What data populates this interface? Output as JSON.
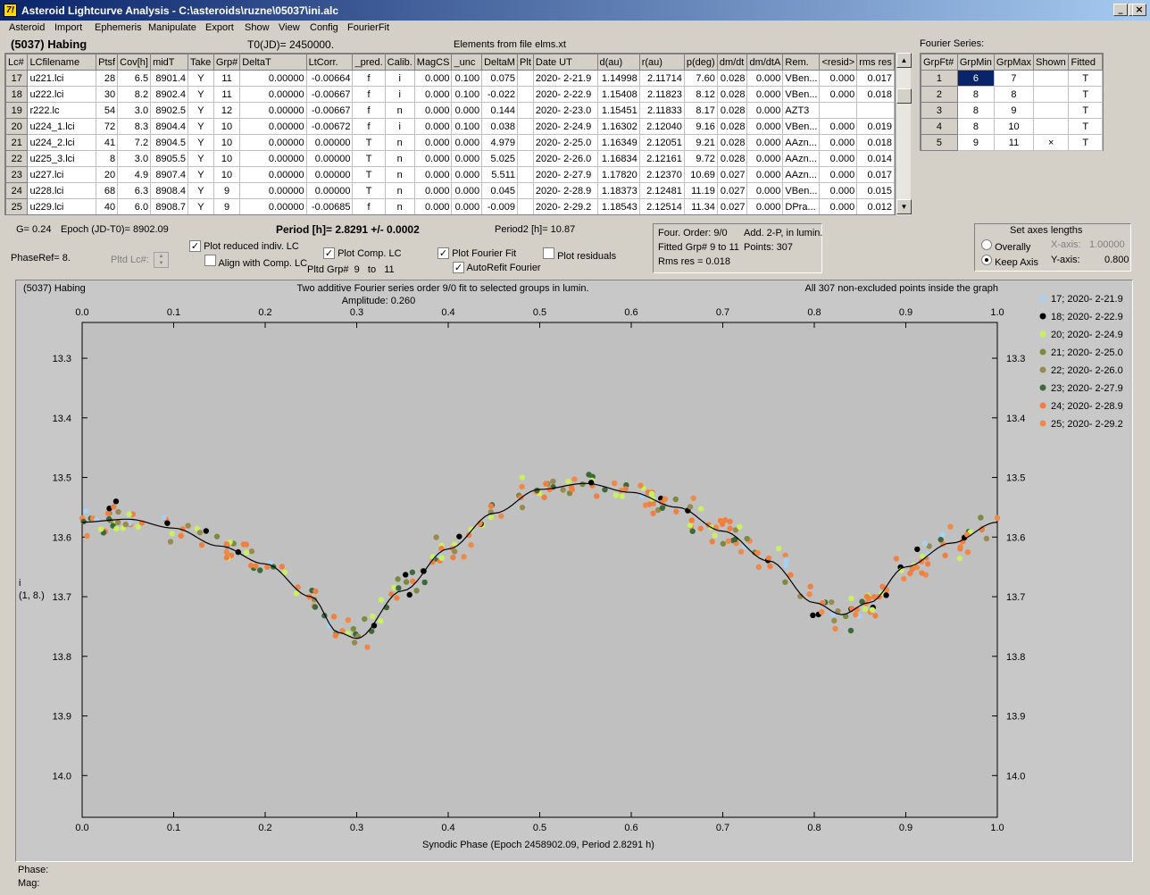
{
  "window": {
    "title": "Asteroid Lightcurve Analysis - C:\\asteroids\\ruzne\\05037\\ini.alc",
    "icon": "7!",
    "controls": [
      "_",
      "□",
      "×"
    ]
  },
  "menu": [
    "Asteroid",
    "Import",
    "Ephemeris",
    "Manipulate",
    "Export",
    "Show",
    "View",
    "Config",
    "FourierFit"
  ],
  "header": {
    "asteroid": "(5037) Habing",
    "t0": "T0(JD)= 2450000.",
    "elements": "Elements from file elms.xt",
    "fourier_series_label": "Fourier Series:"
  },
  "lc_table": {
    "columns": [
      "Lc#",
      "LCfilename",
      "Ptsf",
      "Cov[h]",
      "midT",
      "Take",
      "Grp#",
      "DeltaT",
      "LtCorr.",
      "_pred.",
      "Calib.",
      "MagCS",
      "_unc",
      "DeltaM",
      "Plt",
      "Date UT",
      "d(au)",
      "r(au)",
      "p(deg)",
      "dm/dt",
      "dm/dtA",
      "Rem.",
      "<resid>",
      "rms res"
    ],
    "rows": [
      [
        "17",
        "u221.lci",
        "28",
        "6.5",
        "8901.4",
        "Y",
        "11",
        "0.00000",
        "-0.00664",
        "f",
        "i",
        "0.000",
        "0.100",
        "0.075",
        "",
        "2020- 2-21.9",
        "1.14998",
        "2.11714",
        "7.60",
        "0.028",
        "0.000",
        "VBen...",
        "0.000",
        "0.017"
      ],
      [
        "18",
        "u222.lci",
        "30",
        "8.2",
        "8902.4",
        "Y",
        "11",
        "0.00000",
        "-0.00667",
        "f",
        "i",
        "0.000",
        "0.100",
        "-0.022",
        "",
        "2020- 2-22.9",
        "1.15408",
        "2.11823",
        "8.12",
        "0.028",
        "0.000",
        "VBen...",
        "0.000",
        "0.018"
      ],
      [
        "19",
        "r222.lc",
        "54",
        "3.0",
        "8902.5",
        "Y",
        "12",
        "0.00000",
        "-0.00667",
        "f",
        "n",
        "0.000",
        "0.000",
        "0.144",
        "",
        "2020- 2-23.0",
        "1.15451",
        "2.11833",
        "8.17",
        "0.028",
        "0.000",
        "AZT3",
        "",
        ""
      ],
      [
        "20",
        "u224_1.lci",
        "72",
        "8.3",
        "8904.4",
        "Y",
        "10",
        "0.00000",
        "-0.00672",
        "f",
        "i",
        "0.000",
        "0.100",
        "0.038",
        "",
        "2020- 2-24.9",
        "1.16302",
        "2.12040",
        "9.16",
        "0.028",
        "0.000",
        "VBen...",
        "0.000",
        "0.019"
      ],
      [
        "21",
        "u224_2.lci",
        "41",
        "7.2",
        "8904.5",
        "Y",
        "10",
        "0.00000",
        "0.00000",
        "T",
        "n",
        "0.000",
        "0.000",
        "4.979",
        "",
        "2020- 2-25.0",
        "1.16349",
        "2.12051",
        "9.21",
        "0.028",
        "0.000",
        "AAzn...",
        "0.000",
        "0.018"
      ],
      [
        "22",
        "u225_3.lci",
        "8",
        "3.0",
        "8905.5",
        "Y",
        "10",
        "0.00000",
        "0.00000",
        "T",
        "n",
        "0.000",
        "0.000",
        "5.025",
        "",
        "2020- 2-26.0",
        "1.16834",
        "2.12161",
        "9.72",
        "0.028",
        "0.000",
        "AAzn...",
        "0.000",
        "0.014"
      ],
      [
        "23",
        "u227.lci",
        "20",
        "4.9",
        "8907.4",
        "Y",
        "10",
        "0.00000",
        "0.00000",
        "T",
        "n",
        "0.000",
        "0.000",
        "5.511",
        "",
        "2020- 2-27.9",
        "1.17820",
        "2.12370",
        "10.69",
        "0.027",
        "0.000",
        "AAzn...",
        "0.000",
        "0.017"
      ],
      [
        "24",
        "u228.lci",
        "68",
        "6.3",
        "8908.4",
        "Y",
        "9",
        "0.00000",
        "0.00000",
        "T",
        "n",
        "0.000",
        "0.000",
        "0.045",
        "",
        "2020- 2-28.9",
        "1.18373",
        "2.12481",
        "11.19",
        "0.027",
        "0.000",
        "VBen...",
        "0.000",
        "0.015"
      ],
      [
        "25",
        "u229.lci",
        "40",
        "6.0",
        "8908.7",
        "Y",
        "9",
        "0.00000",
        "-0.00685",
        "f",
        "n",
        "0.000",
        "0.000",
        "-0.009",
        "",
        "2020- 2-29.2",
        "1.18543",
        "2.12514",
        "11.34",
        "0.027",
        "0.000",
        "DPra...",
        "0.000",
        "0.012"
      ]
    ]
  },
  "fourier_table": {
    "columns": [
      "GrpFt#",
      "GrpMin",
      "GrpMax",
      "Shown",
      "Fitted"
    ],
    "rows": [
      [
        "1",
        "6",
        "7",
        "",
        "T"
      ],
      [
        "2",
        "8",
        "8",
        "",
        "T"
      ],
      [
        "3",
        "8",
        "9",
        "",
        "T"
      ],
      [
        "4",
        "8",
        "10",
        "",
        "T"
      ],
      [
        "5",
        "9",
        "11",
        "×",
        "T"
      ]
    ]
  },
  "controls": {
    "g": "G= 0.24",
    "epoch": "Epoch (JD-T0)= 8902.09",
    "period": "Period [h]= 2.8291 +/- 0.0002",
    "period2": "Period2 [h]= 10.87",
    "phase_ref": "PhaseRef= 8.",
    "pltd_lc": "Pltd Lc#:",
    "plot_reduced": "Plot reduced indiv. LC",
    "align": "Align with Comp. LC",
    "plot_comp": "Plot Comp. LC",
    "plot_fourier": "Plot Fourier Fit",
    "plot_resid": "Plot residuals",
    "autorefit": "AutoRefit Fourier",
    "pltd_grp": "Pltd Grp#",
    "grp_from": "9",
    "grp_to_label": "to",
    "grp_to": "11",
    "four_order": "Four. Order:  9/0",
    "add": "Add. 2-P, in lumin.",
    "fitted_grp": "Fitted Grp# 9 to 11",
    "points": "Points: 307",
    "rms": "Rms res     = 0.018",
    "axes_title": "Set axes lengths",
    "overall": "Overally",
    "keep": "Keep Axis",
    "xaxis_label": "X-axis:",
    "xaxis_val": "1.00000",
    "yaxis_label": "Y-axis:",
    "yaxis_val": "0.800"
  },
  "plot": {
    "top_left": "(5037) Habing",
    "top_center": "Two additive Fourier series order 9/0 fit to selected groups in lumin.",
    "amplitude": "Amplitude: 0.260",
    "top_right": "All 307 non-excluded points inside the graph",
    "xticks": [
      "0.0",
      "0.1",
      "0.2",
      "0.3",
      "0.4",
      "0.5",
      "0.6",
      "0.7",
      "0.8",
      "0.9",
      "1.0"
    ],
    "yticks": [
      "13.3",
      "13.4",
      "13.5",
      "13.6",
      "13.7",
      "13.8",
      "13.9",
      "14.0"
    ],
    "ylabel1": "i",
    "ylabel2": "(1, 8.)",
    "xlabel": "Synodic Phase (Epoch 2458902.09, Period 2.8291 h)",
    "legend": [
      {
        "label": "17; 2020- 2-21.9",
        "color": "#a8d0f0"
      },
      {
        "label": "18; 2020- 2-22.9",
        "color": "#000000"
      },
      {
        "label": "20; 2020- 2-24.9",
        "color": "#c8f060"
      },
      {
        "label": "21; 2020- 2-25.0",
        "color": "#7a8a40"
      },
      {
        "label": "22; 2020- 2-26.0",
        "color": "#9a8a50"
      },
      {
        "label": "23; 2020- 2-27.9",
        "color": "#3a6a3a"
      },
      {
        "label": "24; 2020- 2-28.9",
        "color": "#f08040"
      },
      {
        "label": "25; 2020- 2-29.2",
        "color": "#f08848"
      }
    ]
  },
  "chart_data": {
    "type": "scatter",
    "xlabel": "Synodic Phase (Epoch 2458902.09, Period 2.8291 h)",
    "ylabel": "i",
    "xlim": [
      0,
      1
    ],
    "ylim": [
      14.07,
      13.24
    ],
    "grid": false,
    "fit_curve": {
      "x": [
        0,
        0.05,
        0.1,
        0.15,
        0.2,
        0.25,
        0.28,
        0.3,
        0.35,
        0.4,
        0.45,
        0.5,
        0.55,
        0.6,
        0.65,
        0.7,
        0.75,
        0.8,
        0.83,
        0.86,
        0.9,
        0.95,
        1.0
      ],
      "y": [
        13.575,
        13.57,
        13.585,
        13.615,
        13.645,
        13.7,
        13.76,
        13.77,
        13.69,
        13.62,
        13.56,
        13.52,
        13.51,
        13.525,
        13.55,
        13.59,
        13.64,
        13.71,
        13.73,
        13.71,
        13.65,
        13.61,
        13.575
      ]
    }
  },
  "status": {
    "phase": "Phase:",
    "mag": "Mag:"
  }
}
